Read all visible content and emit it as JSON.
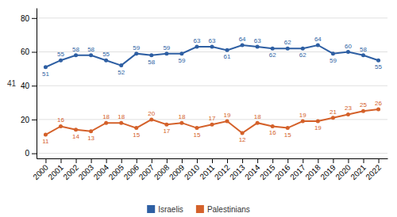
{
  "chart_data": {
    "type": "line",
    "x": [
      2000,
      2001,
      2002,
      2003,
      2004,
      2005,
      2006,
      2007,
      2008,
      2009,
      2010,
      2011,
      2012,
      2013,
      2014,
      2015,
      2016,
      2017,
      2018,
      2019,
      2020,
      2021,
      2022
    ],
    "series": [
      {
        "name": "Israelis",
        "color": "#2e5fa3",
        "marker": "circle",
        "values": [
          51,
          55,
          58,
          58,
          55,
          52,
          59,
          58,
          59,
          59,
          63,
          63,
          61,
          64,
          63,
          62,
          62,
          62,
          64,
          59,
          60,
          58,
          55
        ]
      },
      {
        "name": "Palestinians",
        "color": "#d4612a",
        "marker": "circle",
        "values": [
          11,
          16,
          14,
          13,
          18,
          18,
          15,
          20,
          17,
          18,
          15,
          17,
          19,
          12,
          18,
          16,
          15,
          19,
          19,
          21,
          23,
          25,
          26
        ]
      }
    ],
    "xlim": [
      1999.4,
      2022.6
    ],
    "xticks": [
      2000,
      2001,
      2002,
      2003,
      2004,
      2005,
      2006,
      2007,
      2008,
      2009,
      2010,
      2011,
      2012,
      2013,
      2014,
      2015,
      2016,
      2017,
      2018,
      2019,
      2020,
      2021,
      2022
    ],
    "ylim": [
      -3,
      86
    ],
    "yticks": [
      0,
      20,
      40,
      60,
      80
    ],
    "annotations": [
      {
        "text": "41",
        "y": 41
      }
    ],
    "grid": true,
    "data_labels": true,
    "legend": "bottom"
  }
}
